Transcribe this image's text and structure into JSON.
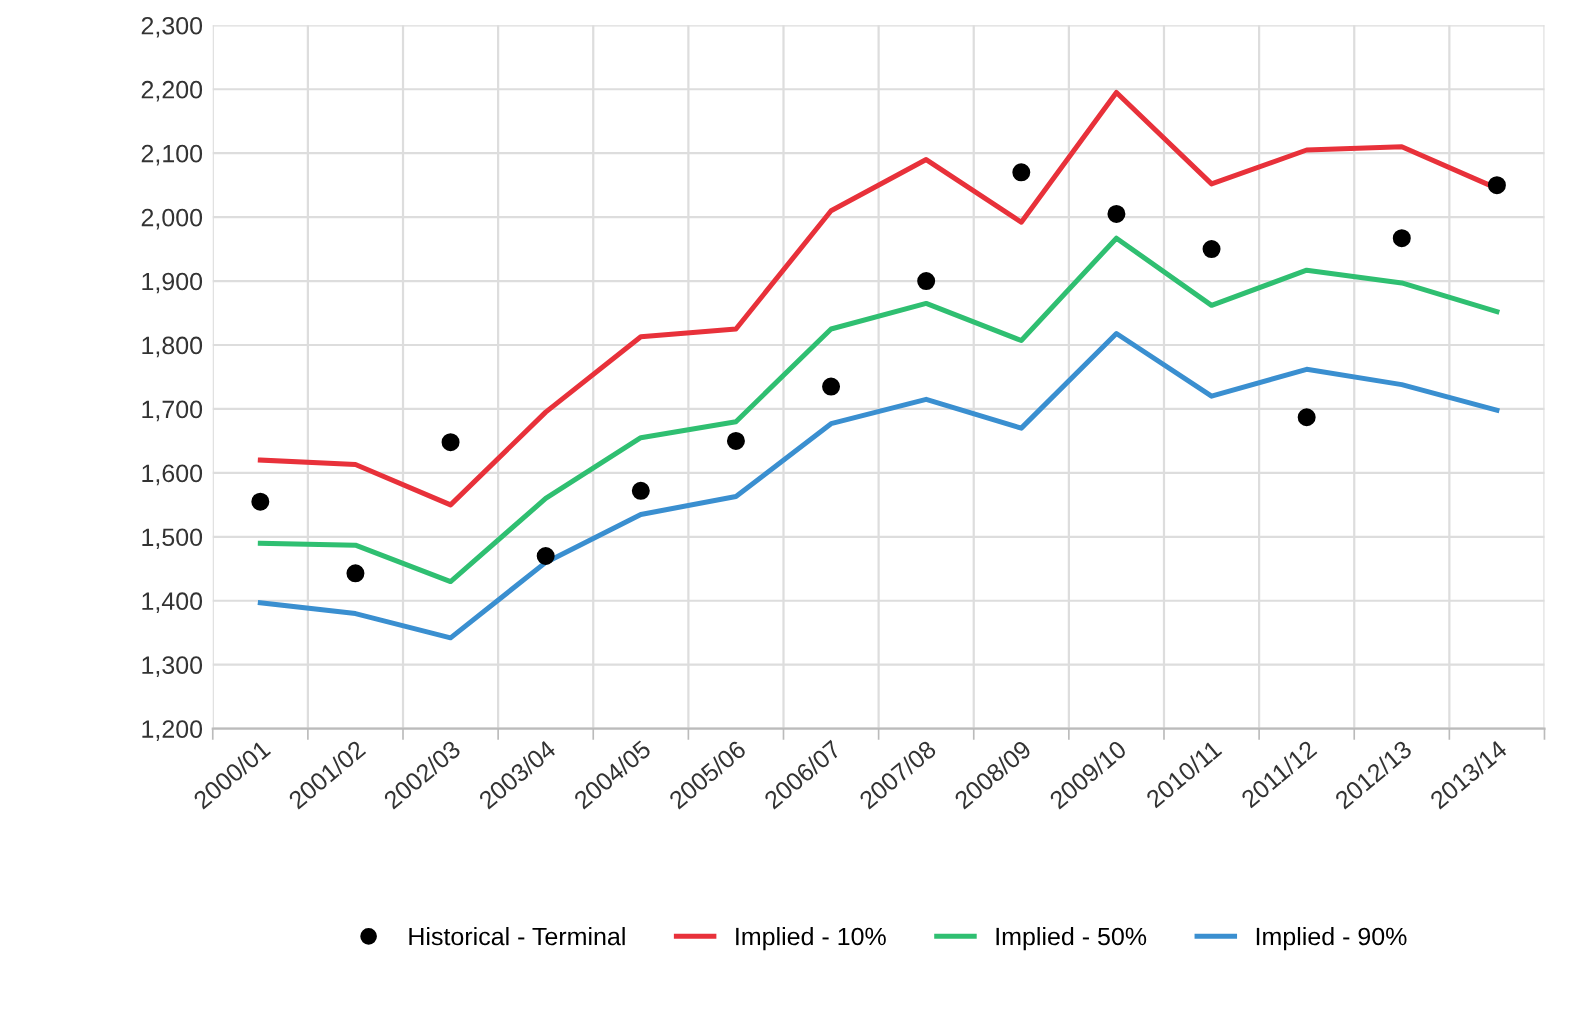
{
  "chart_data": {
    "type": "line",
    "categories": [
      "2000/01",
      "2001/02",
      "2002/03",
      "2003/04",
      "2004/05",
      "2005/06",
      "2006/07",
      "2007/08",
      "2008/09",
      "2009/10",
      "2010/11",
      "2011/12",
      "2012/13",
      "2013/14"
    ],
    "series": [
      {
        "name": "Historical - Terminal",
        "type": "scatter",
        "marker": "circle",
        "color": "#000000",
        "values": [
          1555,
          1443,
          1648,
          1470,
          1572,
          1650,
          1735,
          1900,
          2070,
          2005,
          1950,
          1687,
          1967,
          2050
        ]
      },
      {
        "name": "Implied - 10%",
        "color": "#e8313a",
        "values": [
          1620,
          1613,
          1550,
          1695,
          1813,
          1825,
          2010,
          2090,
          1992,
          2195,
          2052,
          2105,
          2110,
          2045
        ]
      },
      {
        "name": "Implied - 50%",
        "color": "#2fbf71",
        "values": [
          1490,
          1487,
          1430,
          1560,
          1655,
          1680,
          1825,
          1865,
          1807,
          1967,
          1862,
          1917,
          1897,
          1852
        ]
      },
      {
        "name": "Implied - 90%",
        "color": "#3a8fd0",
        "values": [
          1397,
          1380,
          1342,
          1460,
          1535,
          1563,
          1677,
          1715,
          1670,
          1818,
          1720,
          1762,
          1738,
          1698
        ]
      }
    ],
    "ylim": [
      1200,
      2300
    ],
    "yticks": [
      {
        "value": 1200,
        "label": "1,200"
      },
      {
        "value": 1300,
        "label": "1,300"
      },
      {
        "value": 1400,
        "label": "1,400"
      },
      {
        "value": 1500,
        "label": "1,500"
      },
      {
        "value": 1600,
        "label": "1,600"
      },
      {
        "value": 1700,
        "label": "1,700"
      },
      {
        "value": 1800,
        "label": "1,800"
      },
      {
        "value": 1900,
        "label": "1,900"
      },
      {
        "value": 2000,
        "label": "2,000"
      },
      {
        "value": 2100,
        "label": "2,100"
      },
      {
        "value": 2200,
        "label": "2,200"
      },
      {
        "value": 2300,
        "label": "2,300"
      }
    ],
    "grid": true,
    "legend": "bottom"
  }
}
